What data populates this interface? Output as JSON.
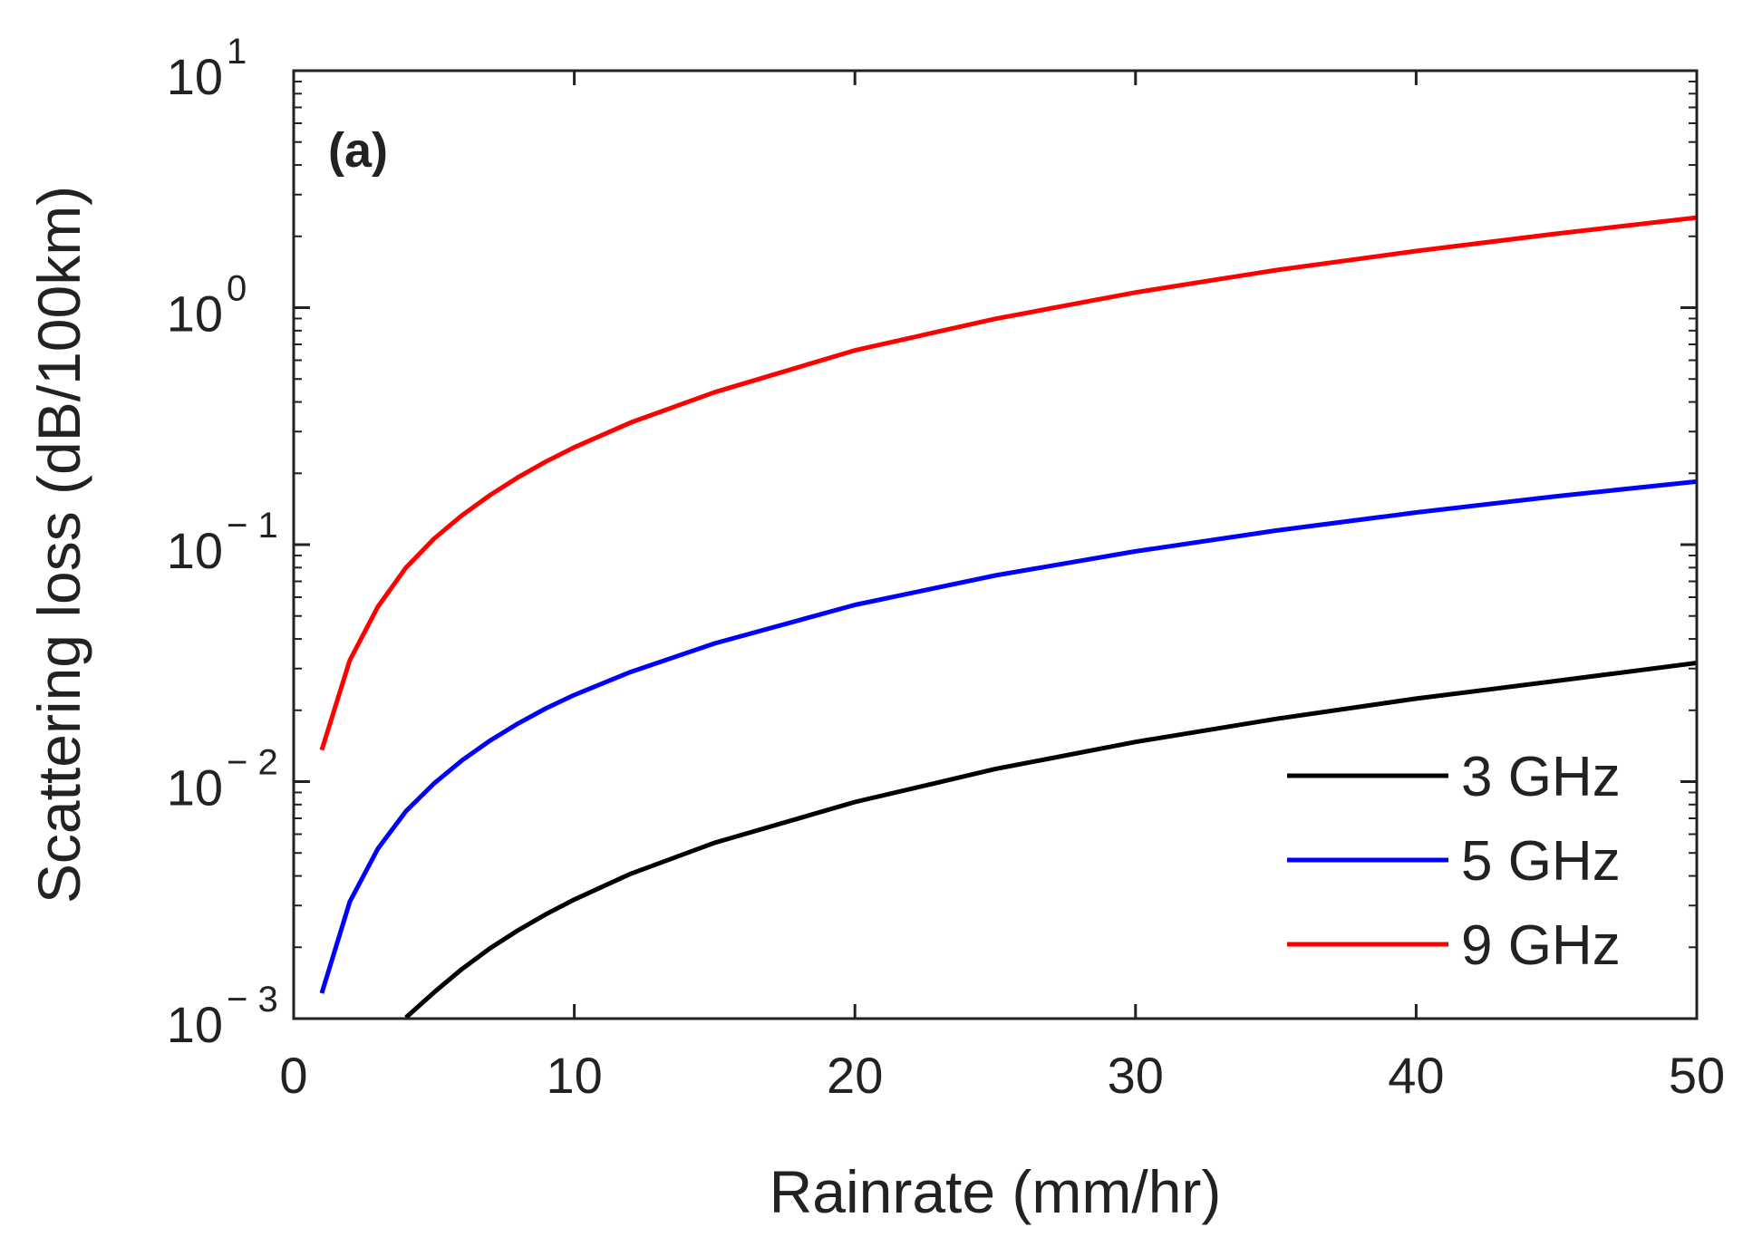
{
  "chart_data": {
    "type": "line",
    "panel_label": "(a)",
    "xlabel": "Rainrate (mm/hr)",
    "ylabel": "Scattering loss (dB/100km)",
    "xlim": [
      0,
      50
    ],
    "ylim": [
      0.001,
      10
    ],
    "yscale": "log",
    "x_ticks": [
      0,
      10,
      20,
      30,
      40,
      50
    ],
    "x_tick_labels": [
      "0",
      "10",
      "20",
      "30",
      "40",
      "50"
    ],
    "y_ticks": [
      {
        "value": 10,
        "base": "10",
        "exp": "1"
      },
      {
        "value": 1,
        "base": "10",
        "exp": "0"
      },
      {
        "value": 0.1,
        "base": "10",
        "exp": "− 1"
      },
      {
        "value": 0.01,
        "base": "10",
        "exp": "− 2"
      },
      {
        "value": 0.001,
        "base": "10",
        "exp": "− 3"
      }
    ],
    "legend_position": "bottom-right",
    "series": [
      {
        "name": "3 GHz",
        "color": "#000000",
        "x": [
          4,
          5,
          6,
          7,
          8,
          9,
          10,
          12,
          15,
          20,
          25,
          30,
          35,
          40,
          45,
          50
        ],
        "y": [
          0.00101,
          0.00129,
          0.00162,
          0.00198,
          0.00236,
          0.00276,
          0.00318,
          0.00408,
          0.00552,
          0.0082,
          0.0113,
          0.0147,
          0.0184,
          0.0224,
          0.0266,
          0.0317
        ]
      },
      {
        "name": "5 GHz",
        "color": "#0000ff",
        "x": [
          1,
          2,
          3,
          4,
          5,
          6,
          7,
          8,
          9,
          10,
          12,
          15,
          20,
          25,
          30,
          35,
          40,
          45,
          50
        ],
        "y": [
          0.00128,
          0.00311,
          0.00521,
          0.0075,
          0.00982,
          0.0123,
          0.0149,
          0.0176,
          0.0204,
          0.0232,
          0.029,
          0.0383,
          0.0557,
          0.0741,
          0.0937,
          0.1146,
          0.1367,
          0.1601,
          0.1847
        ]
      },
      {
        "name": "9 GHz",
        "color": "#ff0000",
        "x": [
          1,
          2,
          3,
          4,
          5,
          6,
          7,
          8,
          9,
          10,
          12,
          15,
          20,
          25,
          30,
          35,
          40,
          45,
          50
        ],
        "y": [
          0.0136,
          0.0325,
          0.0547,
          0.0799,
          0.1059,
          0.133,
          0.1619,
          0.1925,
          0.2245,
          0.2575,
          0.327,
          0.4396,
          0.6607,
          0.8977,
          1.1599,
          1.4393,
          1.7342,
          2.0507,
          2.3988
        ]
      }
    ]
  }
}
